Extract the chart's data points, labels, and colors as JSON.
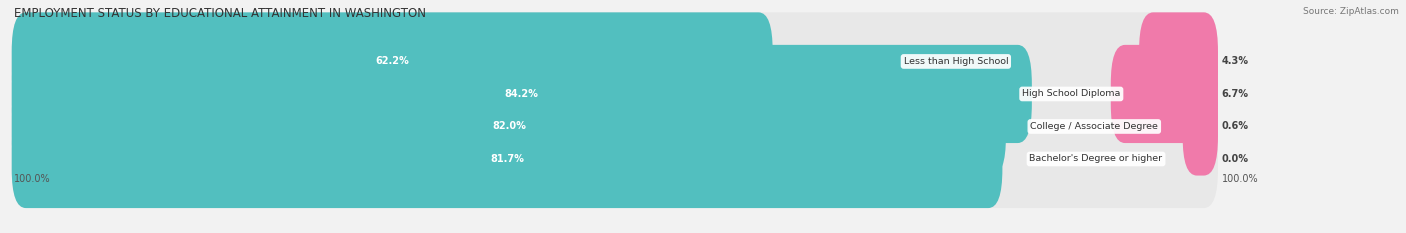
{
  "title": "EMPLOYMENT STATUS BY EDUCATIONAL ATTAINMENT IN WASHINGTON",
  "source": "Source: ZipAtlas.com",
  "categories": [
    "Less than High School",
    "High School Diploma",
    "College / Associate Degree",
    "Bachelor's Degree or higher"
  ],
  "labor_force": [
    62.2,
    84.2,
    82.0,
    81.7
  ],
  "unemployed": [
    4.3,
    6.7,
    0.6,
    0.0
  ],
  "labor_force_color": "#52bfbf",
  "unemployed_color": "#f07aaa",
  "bg_color": "#f2f2f2",
  "bar_bg_color": "#e0e0e0",
  "row_bg_color": "#e8e8e8",
  "total_scale": 100.0,
  "left_label": "100.0%",
  "right_label": "100.0%",
  "title_fontsize": 8.5,
  "source_fontsize": 6.5,
  "value_fontsize": 7.0,
  "cat_fontsize": 6.8,
  "axis_fontsize": 7.0,
  "legend_fontsize": 7.0,
  "bar_height": 0.62,
  "n_rows": 4
}
